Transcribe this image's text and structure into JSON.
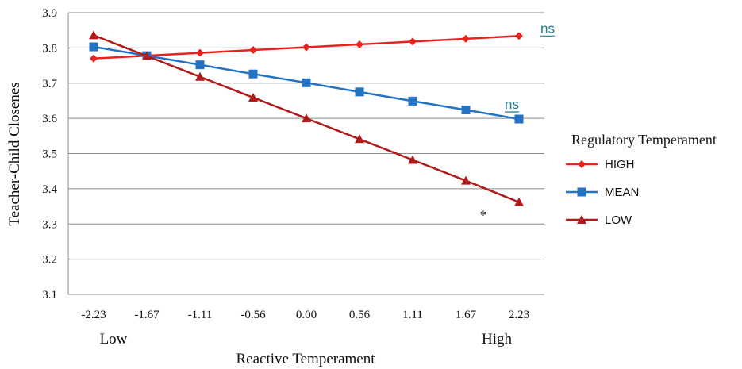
{
  "chart_data": {
    "type": "line",
    "xlabel": "Reactive Temperament",
    "ylabel": "Teacher-Child Closenes",
    "x_extremes": {
      "low": "Low",
      "high": "High"
    },
    "categories": [
      "-2.23",
      "-1.67",
      "-1.11",
      "-0.56",
      "0.00",
      "0.56",
      "1.11",
      "1.67",
      "2.23"
    ],
    "y_ticks": [
      "3.1",
      "3.2",
      "3.3",
      "3.4",
      "3.5",
      "3.6",
      "3.7",
      "3.8",
      "3.9"
    ],
    "ylim": [
      3.1,
      3.9
    ],
    "grid": "horizontal",
    "legend": {
      "title": "Regulatory Temperament",
      "placement": "right"
    },
    "series": [
      {
        "name": "HIGH",
        "color": "#e8221d",
        "marker": "diamond",
        "values": [
          3.77,
          3.778,
          3.786,
          3.794,
          3.802,
          3.81,
          3.818,
          3.826,
          3.834
        ]
      },
      {
        "name": "MEAN",
        "color": "#2472c4",
        "marker": "square",
        "values": [
          3.803,
          3.778,
          3.752,
          3.726,
          3.701,
          3.675,
          3.649,
          3.624,
          3.598
        ]
      },
      {
        "name": "LOW",
        "color": "#b01a1a",
        "marker": "triangle",
        "values": [
          3.836,
          3.777,
          3.718,
          3.659,
          3.6,
          3.541,
          3.482,
          3.423,
          3.362
        ]
      }
    ],
    "annotations": [
      {
        "text": "ns",
        "series": "HIGH",
        "color": "#1f7a8c",
        "underline": true
      },
      {
        "text": "ns",
        "series": "MEAN",
        "color": "#1f7a8c",
        "underline": true
      },
      {
        "text": "*",
        "series": "LOW",
        "color": "#111111",
        "underline": false
      }
    ]
  }
}
